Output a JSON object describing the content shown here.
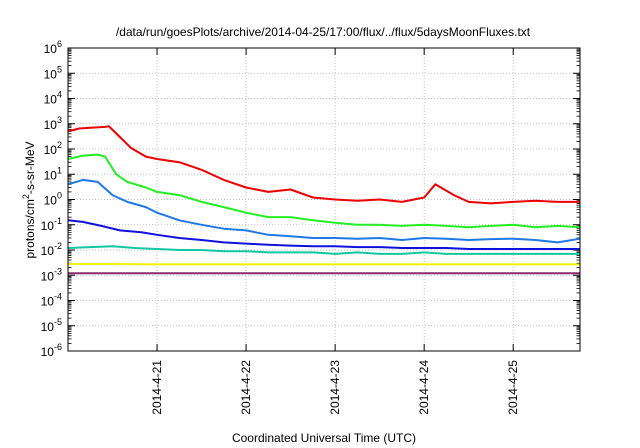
{
  "chart_data": {
    "type": "line",
    "title": "/data/run/goesPlots/archive/2014-04-25/17:00/flux/../flux/5daysMoonFluxes.txt",
    "xlabel": "Coordinated Universal Time (UTC)",
    "ylabel_parts": {
      "base": "protons/cm",
      "sup": "2",
      "rest": "-s-sr-MeV"
    },
    "x_scale": "time",
    "xlim": [
      "2014-04-20T00:00",
      "2014-04-25T18:00"
    ],
    "x_ticks": [
      "2014-4-21",
      "2014-4-22",
      "2014-4-23",
      "2014-4-24",
      "2014-4-25"
    ],
    "x_tick_values": [
      "2014-04-21",
      "2014-04-22",
      "2014-04-23",
      "2014-04-24",
      "2014-04-25"
    ],
    "y_scale": "log",
    "ylim": [
      1e-06,
      1000000.0
    ],
    "y_ticks": [
      {
        "base": "10",
        "exp": "6"
      },
      {
        "base": "10",
        "exp": "5"
      },
      {
        "base": "10",
        "exp": "4"
      },
      {
        "base": "10",
        "exp": "3"
      },
      {
        "base": "10",
        "exp": "2"
      },
      {
        "base": "10",
        "exp": "1"
      },
      {
        "base": "10",
        "exp": "0"
      },
      {
        "base": "10",
        "exp": "-1"
      },
      {
        "base": "10",
        "exp": "-2"
      },
      {
        "base": "10",
        "exp": "-3"
      },
      {
        "base": "10",
        "exp": "-4"
      },
      {
        "base": "10",
        "exp": "-5"
      },
      {
        "base": "10",
        "exp": "-6"
      }
    ],
    "grid": true,
    "series": [
      {
        "color": "#ee0000",
        "x": [
          "2014-04-20T00:00",
          "2014-04-20T03:00",
          "2014-04-20T06:00",
          "2014-04-20T10:00",
          "2014-04-20T11:00",
          "2014-04-20T14:00",
          "2014-04-20T17:00",
          "2014-04-20T21:00",
          "2014-04-21T00:00",
          "2014-04-21T06:00",
          "2014-04-21T12:00",
          "2014-04-21T18:00",
          "2014-04-22T00:00",
          "2014-04-22T06:00",
          "2014-04-22T12:00",
          "2014-04-22T18:00",
          "2014-04-23T00:00",
          "2014-04-23T06:00",
          "2014-04-23T12:00",
          "2014-04-23T18:00",
          "2014-04-24T00:00",
          "2014-04-24T03:00",
          "2014-04-24T08:00",
          "2014-04-24T12:00",
          "2014-04-24T18:00",
          "2014-04-25T00:00",
          "2014-04-25T06:00",
          "2014-04-25T12:00",
          "2014-04-25T18:00"
        ],
        "y": [
          500,
          650,
          700,
          750,
          800,
          300,
          110,
          50,
          40,
          30,
          15,
          6,
          3,
          2,
          2.5,
          1.2,
          1.0,
          0.9,
          1.0,
          0.8,
          1.2,
          4,
          1.5,
          0.8,
          0.7,
          0.8,
          0.9,
          0.8,
          0.8
        ]
      },
      {
        "color": "#22ee22",
        "x": [
          "2014-04-20T00:00",
          "2014-04-20T04:00",
          "2014-04-20T08:00",
          "2014-04-20T10:00",
          "2014-04-20T13:00",
          "2014-04-20T16:00",
          "2014-04-20T21:00",
          "2014-04-21T00:00",
          "2014-04-21T06:00",
          "2014-04-21T12:00",
          "2014-04-21T18:00",
          "2014-04-22T00:00",
          "2014-04-22T06:00",
          "2014-04-22T12:00",
          "2014-04-22T18:00",
          "2014-04-23T00:00",
          "2014-04-23T06:00",
          "2014-04-23T12:00",
          "2014-04-23T18:00",
          "2014-04-24T00:00",
          "2014-04-24T06:00",
          "2014-04-24T12:00",
          "2014-04-24T18:00",
          "2014-04-25T00:00",
          "2014-04-25T06:00",
          "2014-04-25T12:00",
          "2014-04-25T18:00"
        ],
        "y": [
          40,
          55,
          60,
          50,
          10,
          5,
          3,
          2,
          1.5,
          0.8,
          0.5,
          0.3,
          0.2,
          0.2,
          0.15,
          0.12,
          0.1,
          0.1,
          0.09,
          0.1,
          0.09,
          0.08,
          0.09,
          0.1,
          0.08,
          0.09,
          0.08
        ]
      },
      {
        "color": "#1e78e6",
        "x": [
          "2014-04-20T00:00",
          "2014-04-20T04:00",
          "2014-04-20T08:00",
          "2014-04-20T12:00",
          "2014-04-20T16:00",
          "2014-04-20T21:00",
          "2014-04-21T00:00",
          "2014-04-21T06:00",
          "2014-04-21T12:00",
          "2014-04-21T18:00",
          "2014-04-22T00:00",
          "2014-04-22T06:00",
          "2014-04-22T12:00",
          "2014-04-22T18:00",
          "2014-04-23T00:00",
          "2014-04-23T06:00",
          "2014-04-23T12:00",
          "2014-04-23T18:00",
          "2014-04-24T00:00",
          "2014-04-24T06:00",
          "2014-04-24T12:00",
          "2014-04-24T18:00",
          "2014-04-25T00:00",
          "2014-04-25T06:00",
          "2014-04-25T12:00",
          "2014-04-25T18:00"
        ],
        "y": [
          4,
          6,
          5,
          1.5,
          0.8,
          0.5,
          0.3,
          0.15,
          0.1,
          0.07,
          0.06,
          0.04,
          0.035,
          0.03,
          0.03,
          0.028,
          0.03,
          0.025,
          0.03,
          0.028,
          0.025,
          0.027,
          0.028,
          0.025,
          0.02,
          0.028
        ]
      },
      {
        "color": "#1010dd",
        "x": [
          "2014-04-20T00:00",
          "2014-04-20T04:00",
          "2014-04-20T09:00",
          "2014-04-20T14:00",
          "2014-04-20T20:00",
          "2014-04-21T00:00",
          "2014-04-21T06:00",
          "2014-04-21T12:00",
          "2014-04-21T18:00",
          "2014-04-22T00:00",
          "2014-04-22T06:00",
          "2014-04-22T12:00",
          "2014-04-22T18:00",
          "2014-04-23T00:00",
          "2014-04-23T06:00",
          "2014-04-23T12:00",
          "2014-04-23T18:00",
          "2014-04-24T00:00",
          "2014-04-24T06:00",
          "2014-04-24T12:00",
          "2014-04-24T18:00",
          "2014-04-25T00:00",
          "2014-04-25T06:00",
          "2014-04-25T12:00",
          "2014-04-25T18:00"
        ],
        "y": [
          0.15,
          0.13,
          0.09,
          0.06,
          0.05,
          0.04,
          0.03,
          0.025,
          0.02,
          0.018,
          0.016,
          0.015,
          0.014,
          0.014,
          0.013,
          0.013,
          0.012,
          0.012,
          0.012,
          0.011,
          0.011,
          0.011,
          0.011,
          0.011,
          0.011
        ]
      },
      {
        "color": "#10c8a0",
        "x": [
          "2014-04-20T00:00",
          "2014-04-20T06:00",
          "2014-04-20T12:00",
          "2014-04-20T18:00",
          "2014-04-21T00:00",
          "2014-04-21T06:00",
          "2014-04-21T12:00",
          "2014-04-21T18:00",
          "2014-04-22T00:00",
          "2014-04-22T06:00",
          "2014-04-22T12:00",
          "2014-04-22T18:00",
          "2014-04-23T00:00",
          "2014-04-23T06:00",
          "2014-04-23T12:00",
          "2014-04-23T18:00",
          "2014-04-24T00:00",
          "2014-04-24T06:00",
          "2014-04-24T12:00",
          "2014-04-24T18:00",
          "2014-04-25T00:00",
          "2014-04-25T06:00",
          "2014-04-25T12:00",
          "2014-04-25T18:00"
        ],
        "y": [
          0.012,
          0.013,
          0.014,
          0.012,
          0.011,
          0.01,
          0.01,
          0.009,
          0.009,
          0.008,
          0.008,
          0.008,
          0.007,
          0.008,
          0.007,
          0.007,
          0.008,
          0.007,
          0.007,
          0.007,
          0.007,
          0.007,
          0.007,
          0.007
        ]
      },
      {
        "color": "#f2f200",
        "x": [
          "2014-04-20T00:00",
          "2014-04-20T12:00",
          "2014-04-21T00:00",
          "2014-04-21T12:00",
          "2014-04-22T00:00",
          "2014-04-22T12:00",
          "2014-04-23T00:00",
          "2014-04-23T12:00",
          "2014-04-24T00:00",
          "2014-04-24T12:00",
          "2014-04-25T00:00",
          "2014-04-25T12:00",
          "2014-04-25T18:00"
        ],
        "y": [
          0.0028,
          0.0028,
          0.0027,
          0.0027,
          0.0027,
          0.0027,
          0.0027,
          0.0027,
          0.0027,
          0.0027,
          0.0027,
          0.0027,
          0.0027
        ]
      },
      {
        "color": "#8b2a6e",
        "x": [
          "2014-04-20T00:00",
          "2014-04-20T12:00",
          "2014-04-21T00:00",
          "2014-04-21T12:00",
          "2014-04-22T00:00",
          "2014-04-22T12:00",
          "2014-04-23T00:00",
          "2014-04-23T12:00",
          "2014-04-24T00:00",
          "2014-04-24T12:00",
          "2014-04-25T00:00",
          "2014-04-25T12:00",
          "2014-04-25T18:00"
        ],
        "y": [
          0.0012,
          0.0012,
          0.0012,
          0.0012,
          0.0012,
          0.0012,
          0.0012,
          0.0012,
          0.0012,
          0.0012,
          0.0012,
          0.0012,
          0.0012
        ]
      }
    ]
  }
}
